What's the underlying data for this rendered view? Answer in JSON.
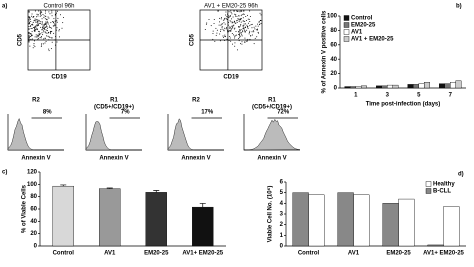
{
  "panel_a": {
    "label": "a)",
    "plots": [
      {
        "title": "Control 96h",
        "y_label": "CD5",
        "x_label": "CD19"
      },
      {
        "title": "AV1 + EM20-25 96h",
        "y_label": "CD5",
        "x_label": "CD19"
      }
    ],
    "histograms": [
      {
        "gate": "R2",
        "percent": "8%",
        "x_label": "Annexin V"
      },
      {
        "gate": "R1",
        "gate_note": "(CD5+/CD19+)",
        "percent": "7%",
        "x_label": "Annexin V"
      },
      {
        "gate": "R2",
        "percent": "17%",
        "x_label": "Annexin V"
      },
      {
        "gate": "R1",
        "gate_note": "(CD5+/CD19+)",
        "percent": "72%",
        "x_label": "Annexin V"
      }
    ]
  },
  "chart_data": [
    {
      "type": "bar",
      "panel_label": "b)",
      "categories": [
        "1",
        "3",
        "5",
        "7"
      ],
      "series": [
        {
          "name": "Control",
          "color": "#111111",
          "values": [
            2,
            3,
            5,
            6
          ]
        },
        {
          "name": "EM20-25",
          "color": "#777777",
          "values": [
            2,
            3,
            5,
            6
          ]
        },
        {
          "name": "AV1",
          "color": "#ffffff",
          "values": [
            2,
            4,
            6,
            8
          ]
        },
        {
          "name": "AV1 + EM20-25",
          "color": "#cccccc",
          "values": [
            3,
            4,
            8,
            10
          ]
        }
      ],
      "ylim": [
        0,
        100
      ],
      "yticks": [
        0,
        20,
        40,
        60,
        80,
        100
      ],
      "x_label": "Time post-infection (days)",
      "y_label": "% of Annexin V positive cells",
      "legend": "top-left"
    },
    {
      "type": "bar",
      "panel_label": "c)",
      "categories": [
        "Control",
        "AV1",
        "EM20-25",
        "AV1+ EM20-25"
      ],
      "values": [
        97,
        93,
        87,
        63
      ],
      "errors": [
        2,
        1,
        3,
        6
      ],
      "colors": [
        "#d8d8d8",
        "#999999",
        "#333333",
        "#111111"
      ],
      "ylim": [
        0,
        120
      ],
      "yticks": [
        0,
        20,
        40,
        60,
        80,
        100,
        120
      ],
      "y_label": "% of Viable Cells"
    },
    {
      "type": "bar",
      "panel_label": "d)",
      "categories": [
        "Control",
        "AV1",
        "EM20-25",
        "AV1+ EM20-25"
      ],
      "series": [
        {
          "name": "Healthy",
          "color": "#ffffff",
          "values": [
            4.8,
            4.8,
            4.4,
            3.7
          ]
        },
        {
          "name": "B-CLL",
          "color": "#888888",
          "values": [
            5,
            5,
            4,
            0.1
          ]
        }
      ],
      "ylim": [
        0,
        6
      ],
      "yticks": [
        0,
        1,
        2,
        3,
        4,
        5,
        6
      ],
      "y_label": "Viable Cell No. (10⁶)",
      "legend": "top-right"
    }
  ]
}
